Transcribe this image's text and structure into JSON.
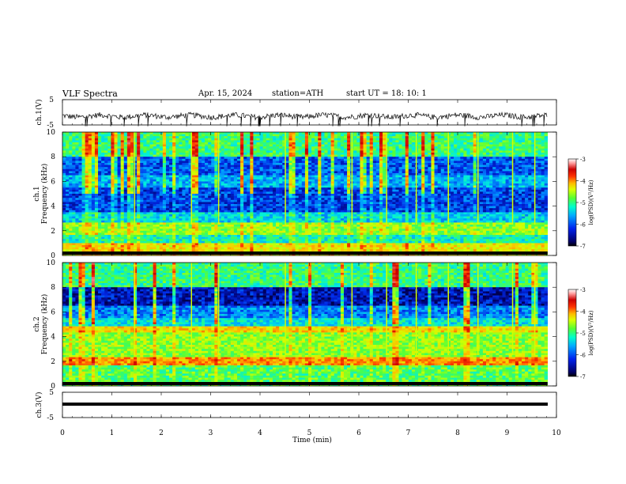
{
  "header": {
    "title": "VLF  Spectra",
    "date": "Apr. 15, 2024",
    "station": "station=ATH",
    "start": "start  UT  =    18: 10: 1"
  },
  "chart_data": [
    {
      "type": "line",
      "name": "ch1-waveform",
      "ylabel": "ch.1(V)",
      "ylim": [
        -5,
        5
      ],
      "yticks": [
        "5",
        "-5"
      ],
      "x_range_min": [
        0,
        9.82
      ],
      "approx_level": -1.5
    },
    {
      "type": "heatmap",
      "name": "ch1-spectrogram",
      "ylabel": "ch.1\nFrequency (kHz)",
      "ylim": [
        0,
        10
      ],
      "yticks": [
        "0",
        "2",
        "4",
        "6",
        "8",
        "10"
      ],
      "xlim": [
        0,
        10
      ],
      "data_extent_min": 9.82
    },
    {
      "type": "heatmap",
      "name": "ch2-spectrogram",
      "ylabel": "ch.2\nFrequency (kHz)",
      "ylim": [
        0,
        10
      ],
      "yticks": [
        "0",
        "2",
        "4",
        "6",
        "8",
        "10"
      ],
      "xlim": [
        0,
        10
      ],
      "data_extent_min": 9.82
    },
    {
      "type": "line",
      "name": "ch3-waveform",
      "ylabel": "ch.3(V)",
      "ylim": [
        -5,
        5
      ],
      "yticks": [
        "5",
        "-5"
      ],
      "approx_level": -1.2
    }
  ],
  "xaxis": {
    "label": "Time  (min)",
    "ticks": [
      "0",
      "1",
      "2",
      "3",
      "4",
      "5",
      "6",
      "7",
      "8",
      "9",
      "10"
    ],
    "xlim": [
      0,
      10
    ]
  },
  "colorbar": {
    "label": "log(PSD)(V²/Hz)",
    "range": [
      -7,
      -3
    ],
    "ticks": [
      "-3",
      "-4",
      "-5",
      "-6",
      "-7"
    ],
    "colors": [
      "#000000",
      "#0000aa",
      "#0044ff",
      "#00aaff",
      "#00ffcc",
      "#44ff44",
      "#ccff00",
      "#ffcc00",
      "#ff6600",
      "#dd0000",
      "#ffaaaa",
      "#ffffff"
    ]
  }
}
